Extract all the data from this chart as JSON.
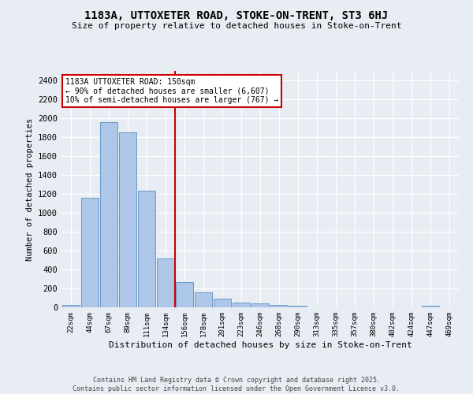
{
  "title": "1183A, UTTOXETER ROAD, STOKE-ON-TRENT, ST3 6HJ",
  "subtitle": "Size of property relative to detached houses in Stoke-on-Trent",
  "xlabel": "Distribution of detached houses by size in Stoke-on-Trent",
  "ylabel": "Number of detached properties",
  "categories": [
    "22sqm",
    "44sqm",
    "67sqm",
    "89sqm",
    "111sqm",
    "134sqm",
    "156sqm",
    "178sqm",
    "201sqm",
    "223sqm",
    "246sqm",
    "268sqm",
    "290sqm",
    "313sqm",
    "335sqm",
    "357sqm",
    "380sqm",
    "402sqm",
    "424sqm",
    "447sqm",
    "469sqm"
  ],
  "values": [
    25,
    1155,
    1960,
    1850,
    1230,
    515,
    270,
    155,
    90,
    48,
    40,
    22,
    18,
    0,
    0,
    0,
    0,
    0,
    0,
    15,
    0
  ],
  "bar_color": "#aec6e8",
  "bar_edge_color": "#5a8fc0",
  "background_color": "#e8edf4",
  "grid_color": "#ffffff",
  "vline_x": 5.5,
  "vline_color": "#cc0000",
  "annotation_text": "1183A UTTOXETER ROAD: 150sqm\n← 90% of detached houses are smaller (6,607)\n10% of semi-detached houses are larger (767) →",
  "annotation_box_color": "#ffffff",
  "annotation_box_edge": "#cc0000",
  "footer_text": "Contains HM Land Registry data © Crown copyright and database right 2025.\nContains public sector information licensed under the Open Government Licence v3.0.",
  "ylim": [
    0,
    2500
  ],
  "yticks": [
    0,
    200,
    400,
    600,
    800,
    1000,
    1200,
    1400,
    1600,
    1800,
    2000,
    2200,
    2400
  ]
}
